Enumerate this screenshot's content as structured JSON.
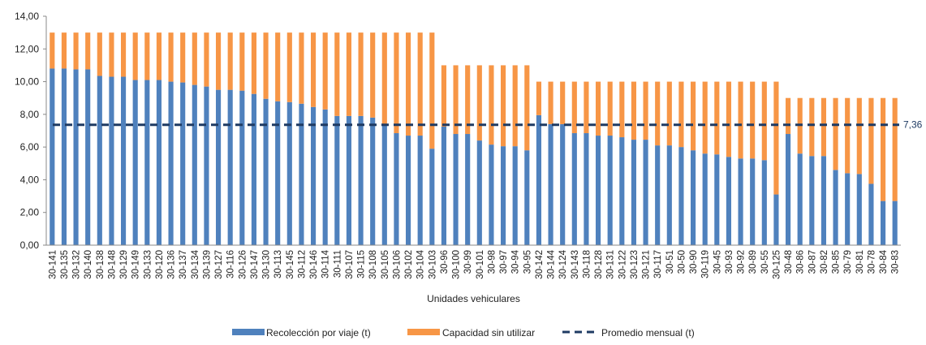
{
  "chart_data": {
    "type": "bar",
    "stacked": true,
    "xlabel": "Unidades vehiculares",
    "ylabel": "",
    "ylim": [
      0,
      14
    ],
    "yticks": [
      "0,00",
      "2,00",
      "4,00",
      "6,00",
      "8,00",
      "10,00",
      "12,00",
      "14,00"
    ],
    "grid": false,
    "legend_position": "bottom",
    "colors": {
      "collection": "#4f81bd",
      "unused": "#f79646",
      "average": "#1f3b63"
    },
    "categories": [
      "30-141",
      "30-135",
      "30-132",
      "30-140",
      "30-138",
      "30-148",
      "30-129",
      "30-149",
      "30-133",
      "30-120",
      "30-136",
      "30-137",
      "30-134",
      "30-139",
      "30-127",
      "30-116",
      "30-126",
      "30-147",
      "30-130",
      "30-113",
      "30-145",
      "30-112",
      "30-146",
      "30-114",
      "30-111",
      "30-107",
      "30-115",
      "30-108",
      "30-105",
      "30-106",
      "30-102",
      "30-104",
      "30-103",
      "30-96",
      "30-100",
      "30-99",
      "30-101",
      "30-98",
      "30-97",
      "30-94",
      "30-95",
      "30-142",
      "30-144",
      "30-124",
      "30-143",
      "30-118",
      "30-128",
      "30-131",
      "30-122",
      "30-123",
      "30-121",
      "30-117",
      "30-51",
      "30-50",
      "30-90",
      "30-119",
      "30-45",
      "30-93",
      "30-92",
      "30-89",
      "30-55",
      "30-125",
      "30-48",
      "30-86",
      "30-87",
      "30-82",
      "30-85",
      "30-79",
      "30-81",
      "30-78",
      "30-84",
      "30-83"
    ],
    "series": [
      {
        "name": "Recolección por viaje (t)",
        "values": [
          10.8,
          10.8,
          10.75,
          10.75,
          10.35,
          10.3,
          10.3,
          10.1,
          10.1,
          10.1,
          10.0,
          9.95,
          9.8,
          9.7,
          9.5,
          9.5,
          9.45,
          9.25,
          8.95,
          8.8,
          8.75,
          8.65,
          8.45,
          8.3,
          7.9,
          7.9,
          7.9,
          7.8,
          7.4,
          6.85,
          6.7,
          6.7,
          5.9,
          7.25,
          6.8,
          6.8,
          6.4,
          6.15,
          6.05,
          6.05,
          5.8,
          7.95,
          7.4,
          7.4,
          6.85,
          6.85,
          6.7,
          6.7,
          6.6,
          6.45,
          6.45,
          6.1,
          6.1,
          6.0,
          5.8,
          5.6,
          5.55,
          5.4,
          5.3,
          5.3,
          5.2,
          3.1,
          6.8,
          5.6,
          5.45,
          5.45,
          4.6,
          4.4,
          4.35,
          3.75,
          2.7,
          2.7
        ]
      },
      {
        "name": "Capacidad sin utilizar",
        "values": [
          2.2,
          2.2,
          2.25,
          2.25,
          2.65,
          2.7,
          2.7,
          2.9,
          2.9,
          2.9,
          3.0,
          3.05,
          3.2,
          3.3,
          3.5,
          3.5,
          3.55,
          3.75,
          4.05,
          4.2,
          4.25,
          4.35,
          4.55,
          4.7,
          5.1,
          5.1,
          5.1,
          5.2,
          5.6,
          6.15,
          6.3,
          6.3,
          7.1,
          3.75,
          4.2,
          4.2,
          4.6,
          4.85,
          4.95,
          4.95,
          5.2,
          2.05,
          2.6,
          2.6,
          3.15,
          3.15,
          3.3,
          3.3,
          3.4,
          3.55,
          3.55,
          3.9,
          3.9,
          4.0,
          4.2,
          4.4,
          4.45,
          4.6,
          4.7,
          4.7,
          4.8,
          6.9,
          2.2,
          3.4,
          3.55,
          3.55,
          4.4,
          4.6,
          4.65,
          5.25,
          6.3,
          6.3
        ]
      },
      {
        "name": "Promedio mensual (t)",
        "type": "line",
        "value": 7.36,
        "label": "7,36"
      }
    ]
  }
}
